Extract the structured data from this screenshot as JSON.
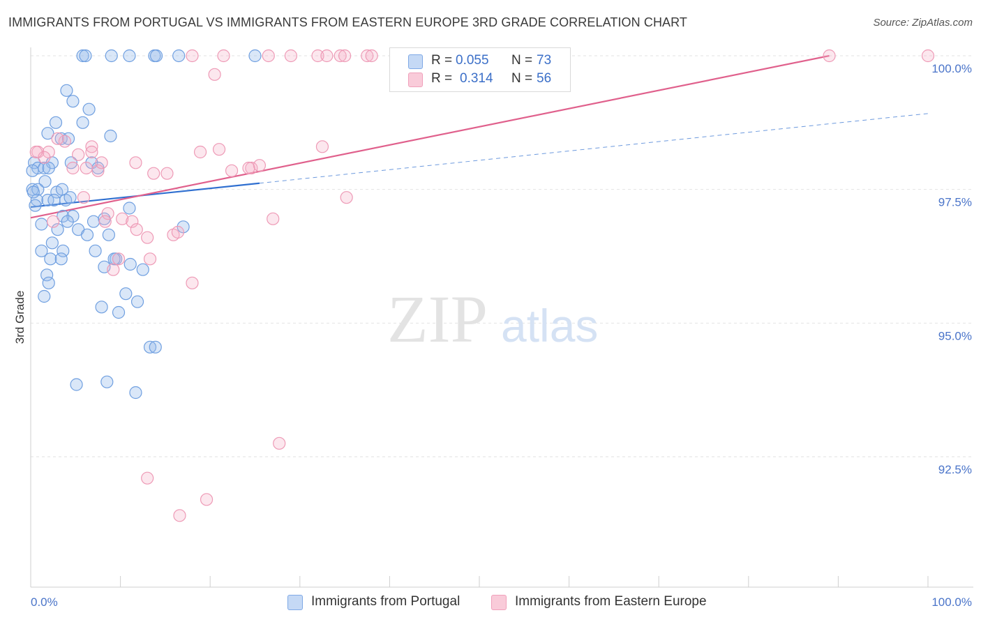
{
  "title": "IMMIGRANTS FROM PORTUGAL VS IMMIGRANTS FROM EASTERN EUROPE 3RD GRADE CORRELATION CHART",
  "source": "Source: ZipAtlas.com",
  "watermark": {
    "zip": "ZIP",
    "atlas": "atlas"
  },
  "legend": {
    "r_label": "R =",
    "n_label": "N =",
    "portugal": {
      "r": "0.055",
      "n": "73"
    },
    "eastern": {
      "r": "0.314",
      "n": "56"
    }
  },
  "bottom_legend": {
    "portugal": "Immigrants from Portugal",
    "eastern": "Immigrants from Eastern Europe"
  },
  "chart_data": {
    "type": "scatter",
    "title": "IMMIGRANTS FROM PORTUGAL VS IMMIGRANTS FROM EASTERN EUROPE 3RD GRADE CORRELATION CHART",
    "xlabel": "",
    "ylabel": "3rd Grade",
    "xlim": [
      0,
      100
    ],
    "ylim": [
      90.2,
      100.45
    ],
    "x_tick_labels": [
      "0.0%",
      "100.0%"
    ],
    "y_ticks": [
      92.5,
      95.0,
      97.5,
      100.0
    ],
    "y_tick_labels": [
      "92.5%",
      "95.0%",
      "97.5%",
      "100.0%"
    ],
    "colors": {
      "portugal": "#7fa9e6",
      "portugal_line": "#2f6fd0",
      "eastern": "#f0a0bb",
      "eastern_line": "#e0608c",
      "grid": "#e2e2e2",
      "axis_text": "#4a74c9"
    },
    "series": [
      {
        "name": "Immigrants from Portugal",
        "r": 0.055,
        "n": 73,
        "trend": {
          "x0": 0,
          "y0": 97.17,
          "x1": 100,
          "y1": 98.92,
          "solid_until": 25.5
        },
        "points": [
          [
            5.8,
            100
          ],
          [
            6.1,
            100
          ],
          [
            9.0,
            100
          ],
          [
            11.0,
            100
          ],
          [
            13.8,
            100
          ],
          [
            14.0,
            100
          ],
          [
            16.5,
            100
          ],
          [
            25.0,
            100
          ],
          [
            4.0,
            99.35
          ],
          [
            4.7,
            99.15
          ],
          [
            6.5,
            99.0
          ],
          [
            5.8,
            98.75
          ],
          [
            2.8,
            98.75
          ],
          [
            1.9,
            98.55
          ],
          [
            8.9,
            98.5
          ],
          [
            3.4,
            98.45
          ],
          [
            4.2,
            98.45
          ],
          [
            0.4,
            98.0
          ],
          [
            2.4,
            98.0
          ],
          [
            4.5,
            98.0
          ],
          [
            6.8,
            98.0
          ],
          [
            0.8,
            97.9
          ],
          [
            1.5,
            97.9
          ],
          [
            7.5,
            97.9
          ],
          [
            1.6,
            97.65
          ],
          [
            0.2,
            97.5
          ],
          [
            0.8,
            97.5
          ],
          [
            2.9,
            97.45
          ],
          [
            3.5,
            97.5
          ],
          [
            0.7,
            97.3
          ],
          [
            1.9,
            97.3
          ],
          [
            2.6,
            97.3
          ],
          [
            3.9,
            97.3
          ],
          [
            11.0,
            97.15
          ],
          [
            3.6,
            97.0
          ],
          [
            4.7,
            97.0
          ],
          [
            8.2,
            96.95
          ],
          [
            4.1,
            96.9
          ],
          [
            7.0,
            96.9
          ],
          [
            1.2,
            96.85
          ],
          [
            3.0,
            96.75
          ],
          [
            5.3,
            96.75
          ],
          [
            6.3,
            96.65
          ],
          [
            8.7,
            96.65
          ],
          [
            17.0,
            96.8
          ],
          [
            1.2,
            96.35
          ],
          [
            2.4,
            96.5
          ],
          [
            3.6,
            96.35
          ],
          [
            7.2,
            96.35
          ],
          [
            2.2,
            96.2
          ],
          [
            3.4,
            96.2
          ],
          [
            9.5,
            96.2
          ],
          [
            11.1,
            96.1
          ],
          [
            8.2,
            96.05
          ],
          [
            12.5,
            96.0
          ],
          [
            1.8,
            95.9
          ],
          [
            2.0,
            95.75
          ],
          [
            10.6,
            95.55
          ],
          [
            1.5,
            95.5
          ],
          [
            11.9,
            95.4
          ],
          [
            7.9,
            95.3
          ],
          [
            9.8,
            95.2
          ],
          [
            13.3,
            94.55
          ],
          [
            13.9,
            94.55
          ],
          [
            5.1,
            93.85
          ],
          [
            8.5,
            93.9
          ],
          [
            11.7,
            93.7
          ],
          [
            0.2,
            97.85
          ],
          [
            0.3,
            97.45
          ],
          [
            4.4,
            97.35
          ],
          [
            2.0,
            97.9
          ],
          [
            9.3,
            96.2
          ],
          [
            0.5,
            97.2
          ]
        ]
      },
      {
        "name": "Immigrants from Eastern Europe",
        "r": 0.314,
        "n": 56,
        "trend": {
          "x0": 0,
          "y0": 96.97,
          "x1": 89.0,
          "y1": 100.0
        },
        "points": [
          [
            18.0,
            100
          ],
          [
            21.5,
            100
          ],
          [
            26.5,
            100
          ],
          [
            29.0,
            100
          ],
          [
            32.0,
            100
          ],
          [
            33.0,
            100
          ],
          [
            34.5,
            100
          ],
          [
            35.0,
            100
          ],
          [
            37.5,
            100
          ],
          [
            38.0,
            100
          ],
          [
            89.0,
            100
          ],
          [
            100.0,
            100
          ],
          [
            20.5,
            99.65
          ],
          [
            0.8,
            98.2
          ],
          [
            2.0,
            98.2
          ],
          [
            3.8,
            98.4
          ],
          [
            5.3,
            98.15
          ],
          [
            6.8,
            98.3
          ],
          [
            11.7,
            98.0
          ],
          [
            13.7,
            97.8
          ],
          [
            15.2,
            97.8
          ],
          [
            18.9,
            98.2
          ],
          [
            21.0,
            98.25
          ],
          [
            22.4,
            97.85
          ],
          [
            24.6,
            97.9
          ],
          [
            25.5,
            97.95
          ],
          [
            32.5,
            98.3
          ],
          [
            1.5,
            98.1
          ],
          [
            4.7,
            97.9
          ],
          [
            6.2,
            97.9
          ],
          [
            7.5,
            97.85
          ],
          [
            7.9,
            98.0
          ],
          [
            5.9,
            97.35
          ],
          [
            35.2,
            97.35
          ],
          [
            2.5,
            96.9
          ],
          [
            8.6,
            97.05
          ],
          [
            10.2,
            96.95
          ],
          [
            11.3,
            96.9
          ],
          [
            8.3,
            96.9
          ],
          [
            11.8,
            96.75
          ],
          [
            15.9,
            96.65
          ],
          [
            16.4,
            96.7
          ],
          [
            27.0,
            96.95
          ],
          [
            13.0,
            96.6
          ],
          [
            9.8,
            96.2
          ],
          [
            13.3,
            96.2
          ],
          [
            9.2,
            96.0
          ],
          [
            18.0,
            95.75
          ],
          [
            27.7,
            92.75
          ],
          [
            13.0,
            92.1
          ],
          [
            19.6,
            91.7
          ],
          [
            16.6,
            91.4
          ],
          [
            0.6,
            98.2
          ],
          [
            3.0,
            98.45
          ],
          [
            6.8,
            98.2
          ],
          [
            24.3,
            97.9
          ]
        ]
      }
    ]
  }
}
